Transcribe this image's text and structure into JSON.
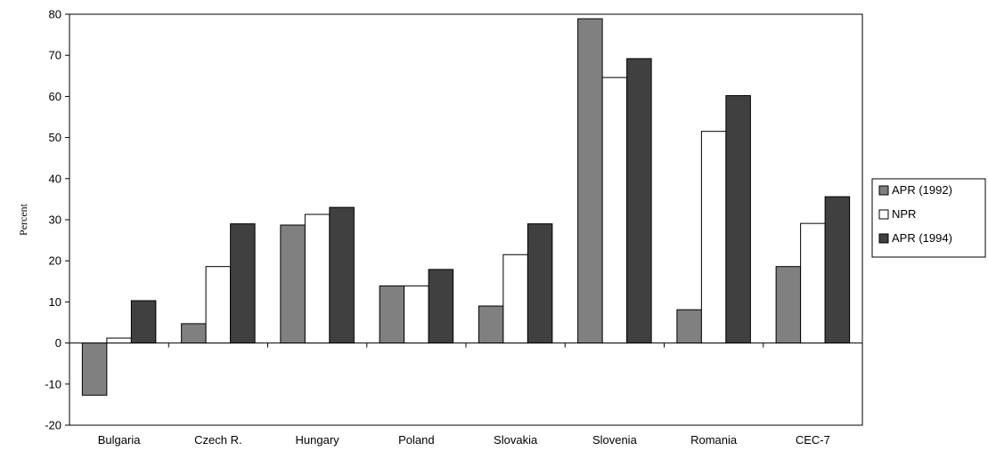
{
  "chart_data": {
    "type": "bar",
    "title": "",
    "xlabel": "",
    "ylabel": "Percent",
    "ylim": [
      -20,
      80
    ],
    "yticks": [
      -20,
      -10,
      0,
      10,
      20,
      30,
      40,
      50,
      60,
      70,
      80
    ],
    "grid": false,
    "legend_position": "right",
    "categories": [
      "Bulgaria",
      "Czech R.",
      "Hungary",
      "Poland",
      "Slovakia",
      "Slovenia",
      "Romania",
      "CEC-7"
    ],
    "series": [
      {
        "name": "APR (1992)",
        "color": "#808080",
        "values": [
          -12.7,
          4.7,
          28.7,
          13.9,
          9.0,
          78.9,
          8.1,
          18.6
        ]
      },
      {
        "name": "NPR",
        "color": "#ffffff",
        "values": [
          1.2,
          18.6,
          31.3,
          13.9,
          21.5,
          64.6,
          51.5,
          29.1
        ]
      },
      {
        "name": "APR (1994)",
        "color": "#404040",
        "values": [
          10.3,
          29.0,
          33.0,
          17.9,
          29.0,
          69.2,
          60.2,
          35.6
        ]
      }
    ]
  }
}
